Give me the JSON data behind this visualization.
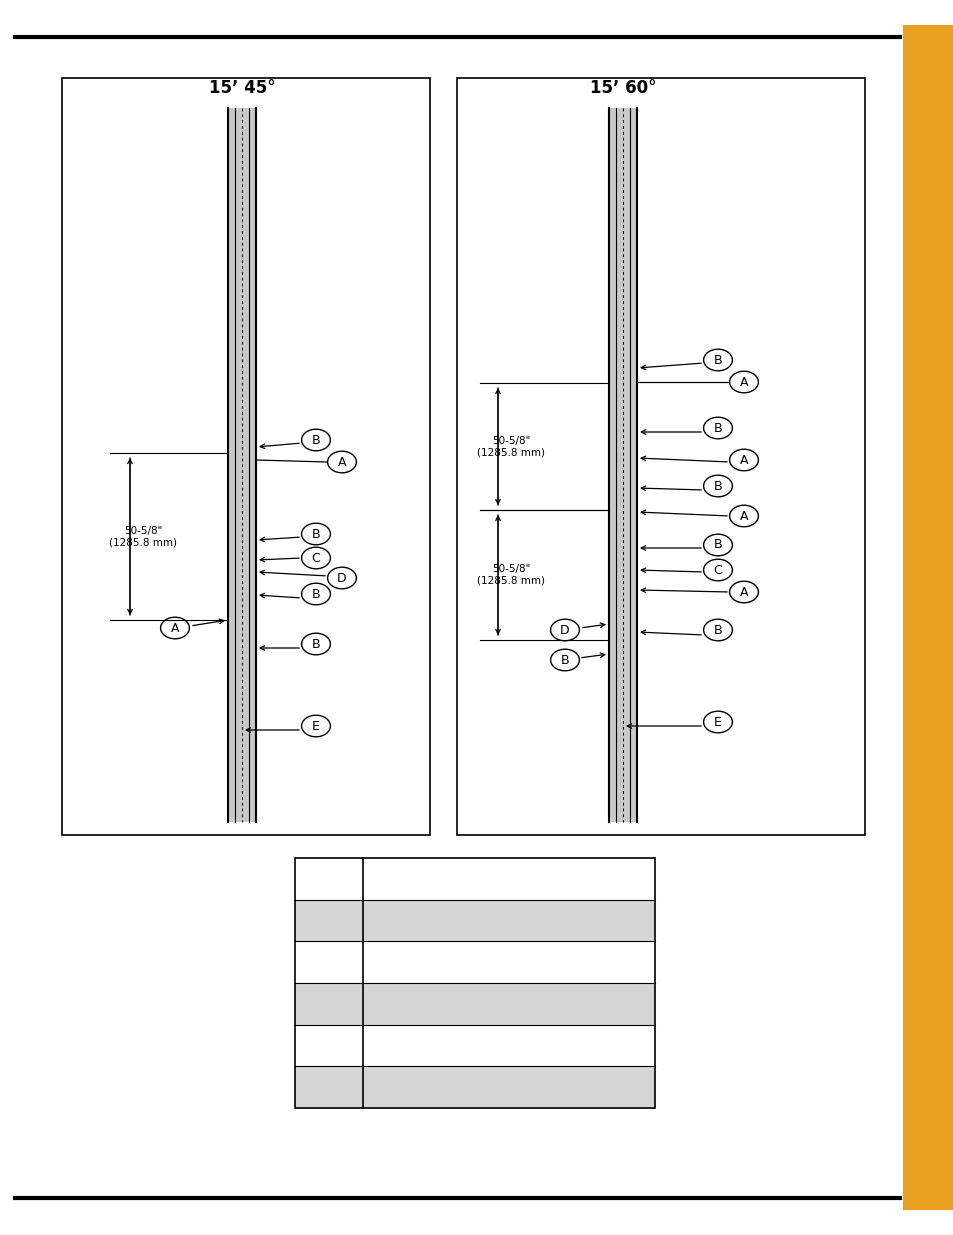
{
  "title_left": "15’ 45°",
  "title_right": "15’ 60°",
  "dim_label": "50-5/8\"\n(1285.8 mm)",
  "background_color": "#ffffff",
  "orange_color": "#E8A020"
}
